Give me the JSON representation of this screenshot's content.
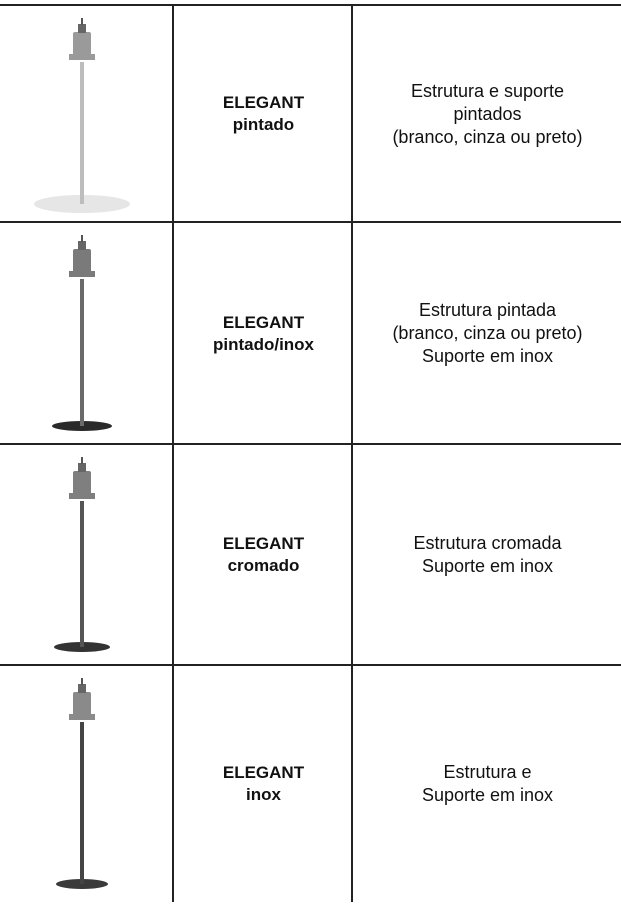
{
  "table": {
    "rows": [
      {
        "name": [
          "ELEGANT",
          "pintado"
        ],
        "description": [
          "Estrutura e suporte",
          "pintados",
          "(branco, cinza ou preto)"
        ]
      },
      {
        "name": [
          "ELEGANT",
          "pintado/inox"
        ],
        "description": [
          "Estrutura pintada",
          "(branco, cinza ou preto)",
          "Suporte em inox"
        ]
      },
      {
        "name": [
          "ELEGANT",
          "cromado"
        ],
        "description": [
          "Estrutura cromada",
          "Suporte em inox"
        ]
      },
      {
        "name": [
          "ELEGANT",
          "inox"
        ],
        "description": [
          "Estrutura e",
          "Suporte em inox"
        ]
      }
    ]
  }
}
